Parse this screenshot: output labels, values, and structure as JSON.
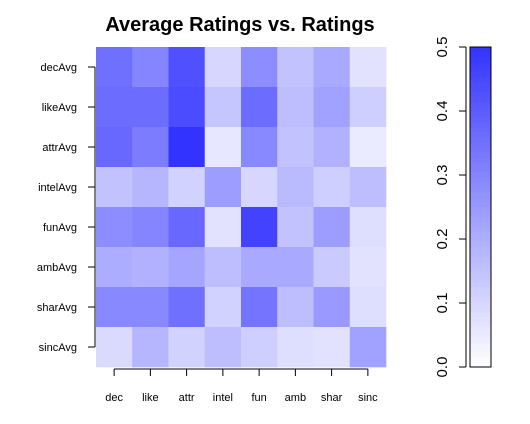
{
  "chart_data": {
    "type": "heatmap",
    "title": "Average Ratings vs. Ratings",
    "xlabel": "",
    "ylabel": "",
    "x_categories": [
      "dec",
      "like",
      "attr",
      "intel",
      "fun",
      "amb",
      "shar",
      "sinc"
    ],
    "y_categories": [
      "decAvg",
      "likeAvg",
      "attrAvg",
      "intelAvg",
      "funAvg",
      "ambAvg",
      "sharAvg",
      "sincAvg"
    ],
    "values": [
      [
        0.35,
        0.3,
        0.43,
        0.1,
        0.28,
        0.15,
        0.21,
        0.07
      ],
      [
        0.36,
        0.36,
        0.44,
        0.14,
        0.36,
        0.16,
        0.23,
        0.12
      ],
      [
        0.37,
        0.32,
        0.5,
        0.06,
        0.29,
        0.15,
        0.19,
        0.05
      ],
      [
        0.15,
        0.18,
        0.11,
        0.24,
        0.1,
        0.17,
        0.12,
        0.16
      ],
      [
        0.28,
        0.3,
        0.37,
        0.07,
        0.46,
        0.15,
        0.24,
        0.08
      ],
      [
        0.2,
        0.19,
        0.22,
        0.16,
        0.21,
        0.21,
        0.13,
        0.07
      ],
      [
        0.29,
        0.29,
        0.35,
        0.11,
        0.34,
        0.16,
        0.25,
        0.08
      ],
      [
        0.09,
        0.18,
        0.11,
        0.16,
        0.12,
        0.08,
        0.07,
        0.23
      ]
    ],
    "color_scale": {
      "low": "#ffffff",
      "high": "#3333ff",
      "range": [
        0,
        0.5
      ],
      "ticks": [
        0.0,
        0.1,
        0.2,
        0.3,
        0.4,
        0.5
      ],
      "tick_labels": [
        "0.0",
        "0.1",
        "0.2",
        "0.3",
        "0.4",
        "0.5"
      ]
    },
    "grid": false,
    "legend": "right"
  }
}
